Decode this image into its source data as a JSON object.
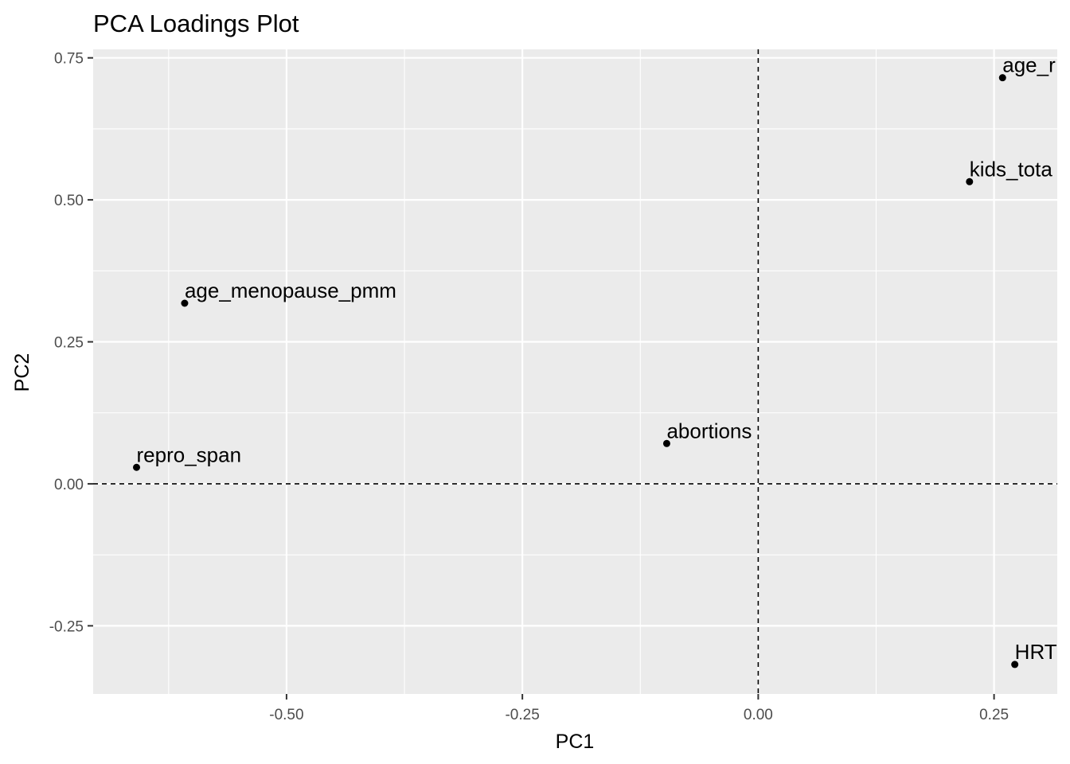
{
  "chart_data": {
    "type": "scatter",
    "title": "PCA Loadings Plot",
    "xlabel": "PC1",
    "ylabel": "PC2",
    "xlim": [
      -0.705,
      0.317
    ],
    "ylim": [
      -0.37,
      0.765
    ],
    "xticks": [
      -0.5,
      -0.25,
      0.0,
      0.25
    ],
    "xtick_labels": [
      "-0.50",
      "-0.25",
      "0.00",
      "0.25"
    ],
    "yticks": [
      -0.25,
      0.0,
      0.25,
      0.5,
      0.75
    ],
    "ytick_labels": [
      "-0.25",
      "0.00",
      "0.25",
      "0.50",
      "0.75"
    ],
    "reference_lines": {
      "x": 0,
      "y": 0,
      "style": "dashed"
    },
    "grid": true,
    "background_color": "#EBEBEB",
    "grid_color": "#FFFFFF",
    "point_color": "#000000",
    "points": [
      {
        "label": "age_r",
        "x": 0.259,
        "y": 0.715
      },
      {
        "label": "kids_tota",
        "x": 0.224,
        "y": 0.532
      },
      {
        "label": "age_menopause_pmm",
        "x": -0.608,
        "y": 0.318
      },
      {
        "label": "abortions",
        "x": -0.097,
        "y": 0.071
      },
      {
        "label": "repro_span",
        "x": -0.659,
        "y": 0.029
      },
      {
        "label": "HRT",
        "x": 0.272,
        "y": -0.318
      }
    ]
  }
}
